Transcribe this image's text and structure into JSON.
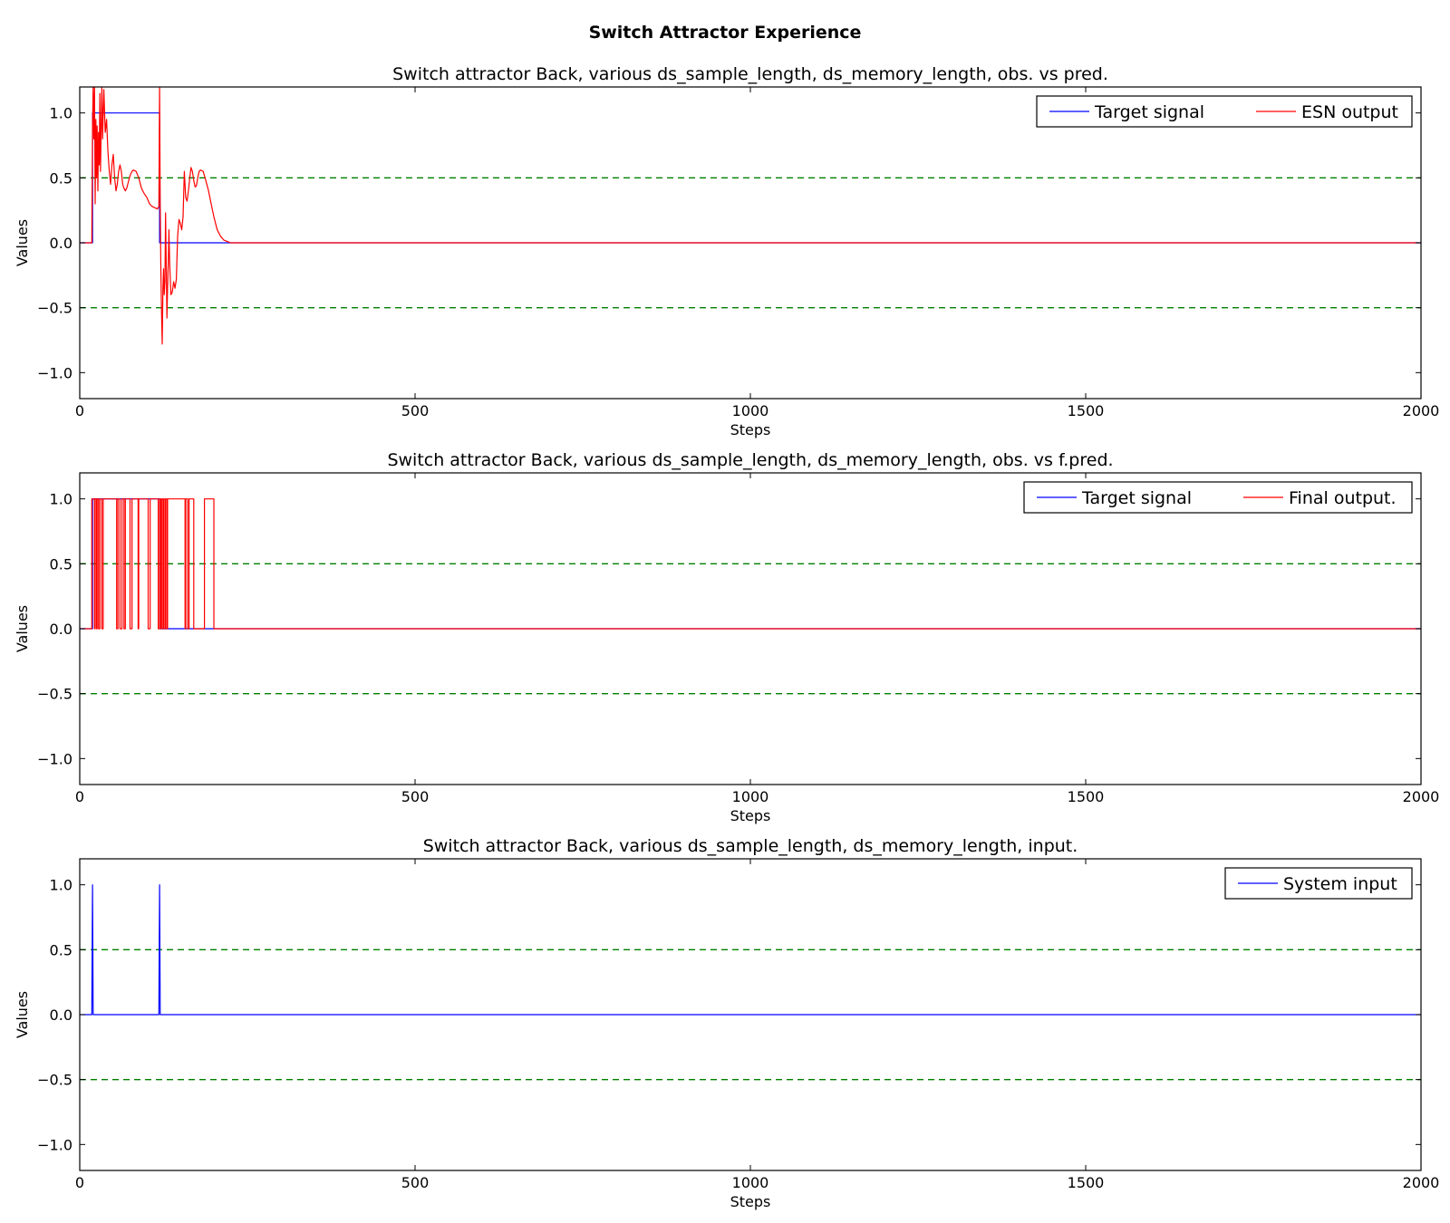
{
  "figure": {
    "title": "Switch Attractor Experience"
  },
  "colors": {
    "target": "#0000ff",
    "output": "#ff0000",
    "input": "#0000ff",
    "threshold": "#008000"
  },
  "chart_data": [
    {
      "type": "line",
      "title": "Switch attractor Back, various ds_sample_length, ds_memory_length, obs. vs pred.",
      "xlabel": "Steps",
      "ylabel": "Values",
      "xlim": [
        0,
        2000
      ],
      "ylim": [
        -1.2,
        1.2
      ],
      "xticks": [
        0,
        500,
        1000,
        1500,
        2000
      ],
      "yticks": [
        1.0,
        0.5,
        0.0,
        -0.5,
        -1.0
      ],
      "hlines": [
        0.5,
        -0.5
      ],
      "grid": false,
      "legend": {
        "placement": "top-right",
        "columns": 2
      },
      "series": [
        {
          "name": "Target signal",
          "color": "#0000ff",
          "x": [
            0,
            19,
            19,
            119,
            119,
            2000
          ],
          "y": [
            0,
            0,
            1,
            1,
            0,
            0
          ]
        },
        {
          "name": "ESN output",
          "color": "#ff0000",
          "x": [
            0,
            18,
            19,
            20,
            21,
            22,
            23,
            24,
            25,
            26,
            27,
            28,
            29,
            30,
            31,
            32,
            33,
            34,
            36,
            38,
            40,
            42,
            44,
            46,
            48,
            50,
            52,
            54,
            56,
            58,
            60,
            62,
            64,
            66,
            68,
            70,
            72,
            74,
            76,
            78,
            80,
            84,
            88,
            92,
            96,
            100,
            104,
            108,
            112,
            116,
            118,
            119,
            120,
            121,
            122,
            123,
            124,
            125,
            126,
            127,
            128,
            129,
            130,
            131,
            132,
            133,
            134,
            136,
            138,
            140,
            142,
            144,
            146,
            148,
            150,
            152,
            154,
            156,
            158,
            160,
            162,
            164,
            166,
            168,
            170,
            172,
            174,
            176,
            178,
            180,
            184,
            188,
            192,
            196,
            200,
            205,
            210,
            215,
            220,
            225,
            230,
            235,
            240,
            245,
            250,
            260,
            270,
            280,
            290,
            300,
            320,
            2000
          ],
          "y": [
            0,
            0,
            0.9,
            1.2,
            0.8,
            1.2,
            0.3,
            0.95,
            0.5,
            0.9,
            0.4,
            0.85,
            0.6,
            1.15,
            0.55,
            0.9,
            1.2,
            0.8,
            1.18,
            0.85,
            0.95,
            0.7,
            0.55,
            0.45,
            0.6,
            0.68,
            0.5,
            0.4,
            0.45,
            0.55,
            0.6,
            0.55,
            0.45,
            0.42,
            0.4,
            0.42,
            0.46,
            0.5,
            0.53,
            0.55,
            0.56,
            0.55,
            0.5,
            0.42,
            0.38,
            0.35,
            0.3,
            0.28,
            0.27,
            0.26,
            0.28,
            1.2,
            0.3,
            -0.2,
            -0.55,
            -0.78,
            -0.35,
            -0.2,
            -0.4,
            -0.3,
            0.23,
            -0.2,
            -0.58,
            -0.35,
            -0.15,
            0.1,
            -0.15,
            -0.4,
            -0.38,
            -0.3,
            -0.35,
            -0.28,
            0.05,
            0.18,
            0.15,
            0.1,
            0.2,
            0.55,
            0.35,
            0.32,
            0.4,
            0.5,
            0.58,
            0.55,
            0.48,
            0.43,
            0.44,
            0.5,
            0.55,
            0.56,
            0.55,
            0.48,
            0.4,
            0.3,
            0.2,
            0.1,
            0.05,
            0.02,
            0.01,
            0,
            0,
            0,
            0,
            0,
            0,
            0,
            0,
            0,
            0,
            0,
            0,
            0
          ]
        }
      ]
    },
    {
      "type": "line",
      "title": "Switch attractor Back, various ds_sample_length, ds_memory_length, obs. vs f.pred.",
      "xlabel": "Steps",
      "ylabel": "Values",
      "xlim": [
        0,
        2000
      ],
      "ylim": [
        -1.2,
        1.2
      ],
      "xticks": [
        0,
        500,
        1000,
        1500,
        2000
      ],
      "yticks": [
        1.0,
        0.5,
        0.0,
        -0.5,
        -1.0
      ],
      "hlines": [
        0.5,
        -0.5
      ],
      "grid": false,
      "legend": {
        "placement": "top-right",
        "columns": 2
      },
      "series": [
        {
          "name": "Target signal",
          "color": "#0000ff",
          "x": [
            0,
            19,
            19,
            119,
            119,
            2000
          ],
          "y": [
            0,
            0,
            1,
            1,
            0,
            0
          ]
        },
        {
          "name": "Final output.",
          "color": "#ff0000",
          "x": [
            0,
            18,
            18,
            22,
            22,
            23,
            23,
            25,
            25,
            26,
            26,
            28,
            28,
            30,
            30,
            33,
            33,
            35,
            35,
            55,
            55,
            57,
            57,
            60,
            60,
            63,
            63,
            66,
            66,
            68,
            68,
            75,
            75,
            78,
            78,
            87,
            87,
            88,
            88,
            102,
            102,
            105,
            105,
            117,
            117,
            119,
            119,
            121,
            121,
            122,
            122,
            124,
            124,
            125,
            125,
            127,
            127,
            128,
            128,
            130,
            130,
            131,
            131,
            157,
            157,
            158,
            158,
            161,
            161,
            163,
            163,
            170,
            170,
            186,
            186,
            200,
            200,
            2000
          ],
          "y": [
            0,
            0,
            1,
            1,
            0,
            0,
            1,
            1,
            0,
            0,
            1,
            1,
            0,
            0,
            1,
            1,
            0,
            0,
            1,
            1,
            0,
            0,
            1,
            1,
            0,
            0,
            1,
            1,
            0,
            0,
            1,
            1,
            0,
            0,
            1,
            1,
            0,
            0,
            1,
            1,
            0,
            0,
            1,
            1,
            0,
            0,
            1,
            1,
            0,
            0,
            1,
            1,
            0,
            0,
            1,
            1,
            0,
            0,
            1,
            1,
            0,
            0,
            1,
            1,
            0,
            0,
            1,
            1,
            0,
            0,
            1,
            1,
            0,
            0,
            1,
            1,
            0,
            0
          ]
        }
      ]
    },
    {
      "type": "line",
      "title": "Switch attractor Back, various ds_sample_length, ds_memory_length, input.",
      "xlabel": "Steps",
      "ylabel": "Values",
      "xlim": [
        0,
        2000
      ],
      "ylim": [
        -1.2,
        1.2
      ],
      "xticks": [
        0,
        500,
        1000,
        1500,
        2000
      ],
      "yticks": [
        1.0,
        0.5,
        0.0,
        -0.5,
        -1.0
      ],
      "hlines": [
        0.5,
        -0.5
      ],
      "grid": false,
      "legend": {
        "placement": "top-right",
        "columns": 1
      },
      "series": [
        {
          "name": "System input",
          "color": "#0000ff",
          "x": [
            0,
            18,
            19,
            20,
            118,
            119,
            120,
            2000
          ],
          "y": [
            0,
            0,
            1,
            0,
            0,
            1,
            0,
            0
          ]
        }
      ]
    }
  ]
}
